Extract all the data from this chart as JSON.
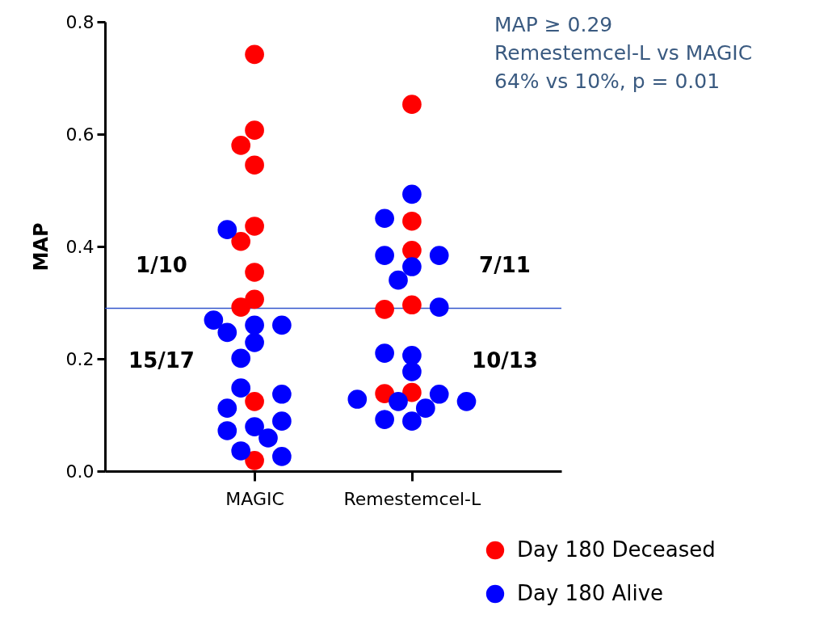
{
  "chart_data": {
    "type": "scatter",
    "ylabel": "MAP",
    "categories": [
      "MAGIC",
      "Remestemcel-L"
    ],
    "ylim": [
      0,
      0.8
    ],
    "yticks": [
      {
        "value": 0,
        "label": "0.0"
      },
      0.2,
      0.4,
      0.6,
      0.8
    ],
    "marker": "circle",
    "grid": false,
    "legend": "bottom right",
    "series": [
      {
        "name": "Day 180 Deceased",
        "color": "#ff0000",
        "x": [
          "MAGIC",
          "MAGIC",
          "MAGIC",
          "MAGIC",
          "MAGIC",
          "MAGIC",
          "MAGIC",
          "MAGIC",
          "MAGIC",
          "MAGIC",
          "MAGIC",
          "Remestemcel-L",
          "Remestemcel-L",
          "Remestemcel-L",
          "Remestemcel-L",
          "Remestemcel-L",
          "Remestemcel-L",
          "Remestemcel-L"
        ],
        "values": [
          0.742,
          0.607,
          0.58,
          0.545,
          0.436,
          0.409,
          0.354,
          0.306,
          0.292,
          0.124,
          0.019,
          0.653,
          0.445,
          0.393,
          0.296,
          0.288,
          0.14,
          0.138
        ]
      },
      {
        "name": "Day 180 Alive",
        "color": "#0000ff",
        "x": [
          "MAGIC",
          "MAGIC",
          "MAGIC",
          "MAGIC",
          "MAGIC",
          "MAGIC",
          "MAGIC",
          "MAGIC",
          "MAGIC",
          "MAGIC",
          "MAGIC",
          "MAGIC",
          "MAGIC",
          "MAGIC",
          "MAGIC",
          "MAGIC",
          "Remestemcel-L",
          "Remestemcel-L",
          "Remestemcel-L",
          "Remestemcel-L",
          "Remestemcel-L",
          "Remestemcel-L",
          "Remestemcel-L",
          "Remestemcel-L",
          "Remestemcel-L",
          "Remestemcel-L",
          "Remestemcel-L",
          "Remestemcel-L",
          "Remestemcel-L",
          "Remestemcel-L",
          "Remestemcel-L",
          "Remestemcel-L",
          "Remestemcel-L"
        ],
        "values": [
          0.43,
          0.26,
          0.247,
          0.26,
          0.269,
          0.229,
          0.201,
          0.148,
          0.137,
          0.112,
          0.079,
          0.089,
          0.072,
          0.059,
          0.036,
          0.026,
          0.493,
          0.45,
          0.384,
          0.384,
          0.364,
          0.34,
          0.292,
          0.206,
          0.21,
          0.177,
          0.137,
          0.128,
          0.124,
          0.124,
          0.112,
          0.089,
          0.092
        ]
      }
    ],
    "ref_lines": [
      {
        "axis": "y",
        "value": 0.29,
        "color": "#3355cc"
      }
    ],
    "annotations": [
      "MAP ≥ 0.29",
      "Remestemcel-L vs MAGIC",
      "64% vs 10%, p = 0.01",
      "1/10",
      "7/11",
      "15/17",
      "10/13"
    ]
  }
}
